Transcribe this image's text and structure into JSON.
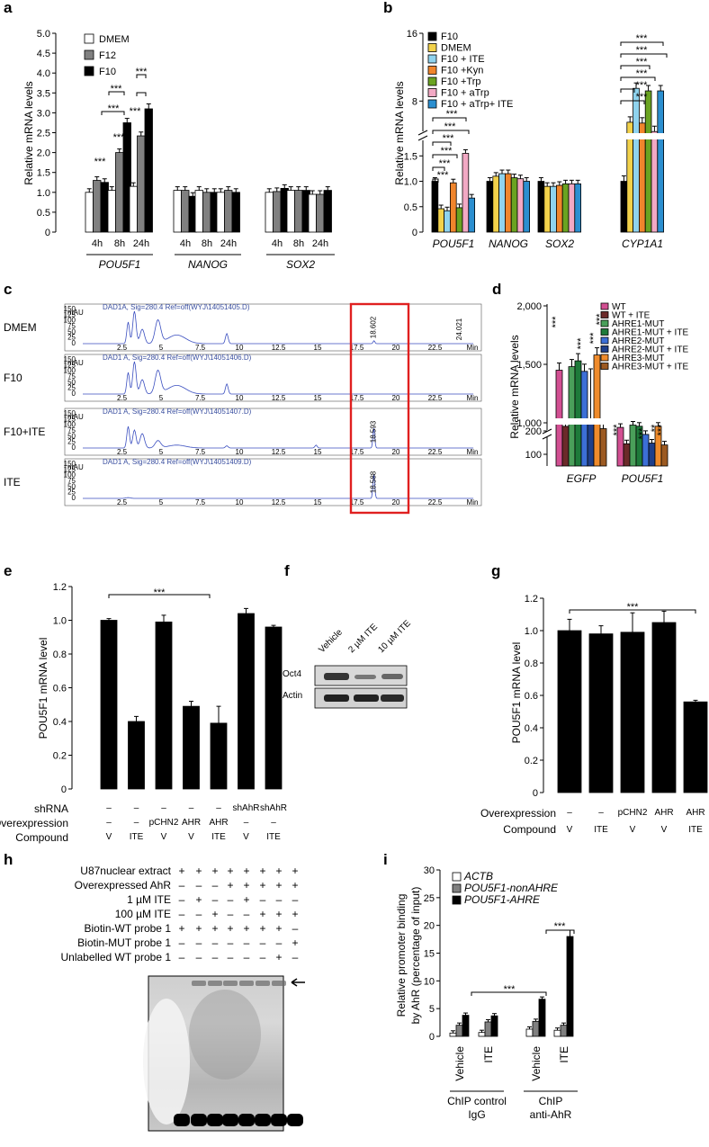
{
  "panels": {
    "a": {
      "label": "a",
      "ylabel": "Relative mRNA levels",
      "ticks": [
        "0",
        "0.5",
        "1.0",
        "1.5",
        "2.0",
        "2.5",
        "3.0",
        "3.5",
        "4.0",
        "4.5",
        "5.0"
      ],
      "legend": [
        "DMEM",
        "F12",
        "F10"
      ],
      "times": [
        "4h",
        "8h",
        "24h"
      ],
      "genes": [
        "POU5F1",
        "NANOG",
        "SOX2"
      ],
      "sig": "***"
    },
    "b": {
      "label": "b",
      "ylabel": "Relative mRNA levels",
      "ticks_low": [
        "0",
        "0.5",
        "1.0",
        "1.5"
      ],
      "ticks_high": [
        "8",
        "16"
      ],
      "legend": [
        "F10",
        "DMEM",
        "F10 + ITE",
        "F10 +Kyn",
        "F10 +Trp",
        "F10 + aTrp",
        "F10 + aTrp+ ITE"
      ],
      "genes": [
        "POU5F1",
        "NANOG",
        "SOX2",
        "CYP1A1"
      ],
      "sig": "***"
    },
    "c": {
      "label": "c",
      "rows": [
        "DMEM",
        "F10",
        "F10+ITE",
        "ITE"
      ],
      "headers": [
        "DAD1A, Sig=280.4 Ref=off(WYJ\\14051405.D)",
        "DAD1 A, Sig=280.4 Ref=off(WYJ\\14051406.D)",
        "DAD1 A, Sig=280.4 Ref=off(WYJ\\14051407.D)",
        "DAD1 A, Sig=280.4 Ref=off(WYJ\\14051409.D)"
      ],
      "peak_labels": [
        "18.602",
        "",
        "18.593",
        "18.588"
      ],
      "end_label": "24.021",
      "yunit": "mAU",
      "yticks": [
        "0",
        "25",
        "50",
        "75",
        "100",
        "125",
        "150"
      ],
      "xticks": [
        "2.5",
        "5",
        "7.5",
        "10",
        "12.5",
        "15",
        "17.5",
        "20",
        "22.5",
        "Min"
      ]
    },
    "d": {
      "label": "d",
      "ylabel": "Relative mRNA levels",
      "ticks_high": [
        "1,000",
        "1,500",
        "2,000"
      ],
      "ticks_low": [
        "100",
        "200"
      ],
      "legend": [
        "WT",
        "WT + ITE",
        "AHRE1-MUT",
        "AHRE1-MUT + ITE",
        "AHRE2-MUT",
        "AHRE2-MUT + ITE",
        "AHRE3-MUT",
        "AHRE3-MUT + ITE"
      ],
      "genes": [
        "EGFP",
        "POU5F1"
      ],
      "sig": "***",
      "sig2": "**"
    },
    "e": {
      "label": "e",
      "ylabel": "POU5F1 mRNA level",
      "ticks": [
        "0",
        "0.2",
        "0.4",
        "0.6",
        "0.8",
        "1.0",
        "1.2"
      ],
      "sig": "***",
      "row_labels": [
        "shRNA",
        "Overexpression",
        "Compound"
      ],
      "shrna": [
        "–",
        "–",
        "–",
        "–",
        "–",
        "shAhR",
        "shAhR"
      ],
      "overexp": [
        "–",
        "–",
        "pCHN2",
        "AHR",
        "AHR",
        "–",
        "–"
      ],
      "compound": [
        "V",
        "ITE",
        "V",
        "V",
        "ITE",
        "V",
        "ITE"
      ]
    },
    "f": {
      "label": "f",
      "lanes": [
        "Vehicle",
        "2 µM ITE",
        "10 µM ITE"
      ],
      "bands": [
        "Oct4",
        "Actin"
      ]
    },
    "g": {
      "label": "g",
      "ylabel": "POU5F1 mRNA level",
      "ticks": [
        "0",
        "0.2",
        "0.4",
        "0.6",
        "0.8",
        "1.0",
        "1.2"
      ],
      "sig": "***",
      "row_labels": [
        "Overexpression",
        "Compound"
      ],
      "overexp": [
        "–",
        "–",
        "pCHN2",
        "AHR",
        "AHR"
      ],
      "compound": [
        "V",
        "ITE",
        "V",
        "V",
        "ITE"
      ]
    },
    "h": {
      "label": "h",
      "rows": [
        "U87nuclear extract",
        "Overexpressed AhR",
        "1 µM ITE",
        "100 µM ITE",
        "Biotin-WT probe 1",
        "Biotin-MUT probe 1",
        "Unlabelled WT probe 1"
      ],
      "marks": [
        [
          "+",
          "+",
          "+",
          "+",
          "+",
          "+",
          "+",
          "+"
        ],
        [
          "–",
          "–",
          "–",
          "+",
          "+",
          "+",
          "+",
          "+"
        ],
        [
          "–",
          "+",
          "–",
          "–",
          "+",
          "–",
          "–",
          "–"
        ],
        [
          "–",
          "–",
          "+",
          "–",
          "–",
          "+",
          "+",
          "+"
        ],
        [
          "+",
          "+",
          "+",
          "+",
          "+",
          "+",
          "+",
          "–"
        ],
        [
          "–",
          "–",
          "–",
          "–",
          "–",
          "–",
          "–",
          "+"
        ],
        [
          "–",
          "–",
          "–",
          "–",
          "–",
          "–",
          "+",
          "–"
        ]
      ]
    },
    "i": {
      "label": "i",
      "ylabel1": "Relative promoter binding",
      "ylabel2": "by AhR (percentage of input)",
      "ticks": [
        "0",
        "5",
        "10",
        "15",
        "20",
        "25",
        "30"
      ],
      "legend": [
        "ACTB",
        "POU5F1-nonAHRE",
        "POU5F1-AHRE"
      ],
      "xcats": [
        "Vehicle",
        "ITE",
        "Vehicle",
        "ITE"
      ],
      "group1": [
        "ChIP control",
        "IgG"
      ],
      "group2": [
        "ChIP",
        "anti-AhR"
      ],
      "sig": "***"
    }
  },
  "chart_data": [
    {
      "panel": "a",
      "type": "bar",
      "ylim": [
        0,
        5
      ],
      "categories": [
        "POU5F1 4h",
        "POU5F1 8h",
        "POU5F1 24h",
        "NANOG 4h",
        "NANOG 8h",
        "NANOG 24h",
        "SOX2 4h",
        "SOX2 8h",
        "SOX2 24h"
      ],
      "series": [
        {
          "name": "DMEM",
          "values": [
            1.0,
            1.05,
            1.15,
            1.05,
            1.05,
            1.0,
            1.0,
            1.05,
            0.95
          ]
        },
        {
          "name": "F12",
          "values": [
            1.3,
            2.0,
            2.42,
            1.05,
            1.0,
            1.05,
            1.02,
            1.05,
            0.95
          ]
        },
        {
          "name": "F10",
          "values": [
            1.25,
            2.75,
            3.1,
            0.9,
            1.0,
            1.0,
            1.1,
            1.05,
            1.05
          ]
        }
      ]
    },
    {
      "panel": "b",
      "type": "bar",
      "categories": [
        "POU5F1",
        "NANOG",
        "SOX2",
        "CYP1A1"
      ],
      "series": [
        {
          "name": "F10",
          "values": [
            1.0,
            1.0,
            1.0,
            1.0
          ]
        },
        {
          "name": "DMEM",
          "values": [
            0.46,
            1.1,
            0.9,
            5.5
          ]
        },
        {
          "name": "F10 + ITE",
          "values": [
            0.42,
            1.15,
            0.9,
            9.5
          ]
        },
        {
          "name": "F10 +Kyn",
          "values": [
            0.97,
            1.15,
            0.92,
            5.4
          ]
        },
        {
          "name": "F10 +Trp",
          "values": [
            0.48,
            1.07,
            0.95,
            9.2
          ]
        },
        {
          "name": "F10 + aTrp",
          "values": [
            1.55,
            1.05,
            0.95,
            4.4
          ]
        },
        {
          "name": "F10 + aTrp+ ITE",
          "values": [
            0.67,
            1.0,
            0.95,
            9.2
          ]
        }
      ]
    },
    {
      "panel": "d",
      "type": "bar",
      "categories": [
        "EGFP",
        "POU5F1"
      ],
      "series": [
        {
          "name": "WT",
          "values": [
            1450,
            215
          ]
        },
        {
          "name": "WT + ITE",
          "values": [
            970,
            145
          ]
        },
        {
          "name": "AHRE1-MUT",
          "values": [
            1480,
            225
          ]
        },
        {
          "name": "AHRE1-MUT + ITE",
          "values": [
            1530,
            220
          ]
        },
        {
          "name": "AHRE2-MUT",
          "values": [
            1440,
            185
          ]
        },
        {
          "name": "AHRE2-MUT + ITE",
          "values": [
            1000,
            148
          ]
        },
        {
          "name": "AHRE3-MUT",
          "values": [
            1580,
            220
          ]
        },
        {
          "name": "AHRE3-MUT + ITE",
          "values": [
            950,
            140
          ]
        }
      ]
    },
    {
      "panel": "e",
      "type": "bar",
      "ylim": [
        0,
        1.2
      ],
      "values": [
        1.0,
        0.4,
        0.99,
        0.49,
        0.39,
        1.04,
        0.96
      ],
      "errors": [
        0.01,
        0.03,
        0.04,
        0.03,
        0.1,
        0.03,
        0.01
      ]
    },
    {
      "panel": "g",
      "type": "bar",
      "ylim": [
        0,
        1.2
      ],
      "values": [
        1.0,
        0.98,
        0.99,
        1.05,
        0.56
      ],
      "errors": [
        0.07,
        0.05,
        0.12,
        0.07,
        0.01
      ]
    },
    {
      "panel": "i",
      "type": "bar",
      "ylim": [
        0,
        30
      ],
      "categories": [
        "Vehicle",
        "ITE",
        "Vehicle",
        "ITE"
      ],
      "series": [
        {
          "name": "ACTB",
          "values": [
            0.6,
            0.7,
            1.3,
            1.1
          ]
        },
        {
          "name": "POU5F1-nonAHRE",
          "values": [
            2.0,
            2.6,
            2.7,
            2.0
          ]
        },
        {
          "name": "POU5F1-AHRE",
          "values": [
            3.8,
            3.7,
            6.7,
            18.0
          ]
        }
      ]
    }
  ]
}
